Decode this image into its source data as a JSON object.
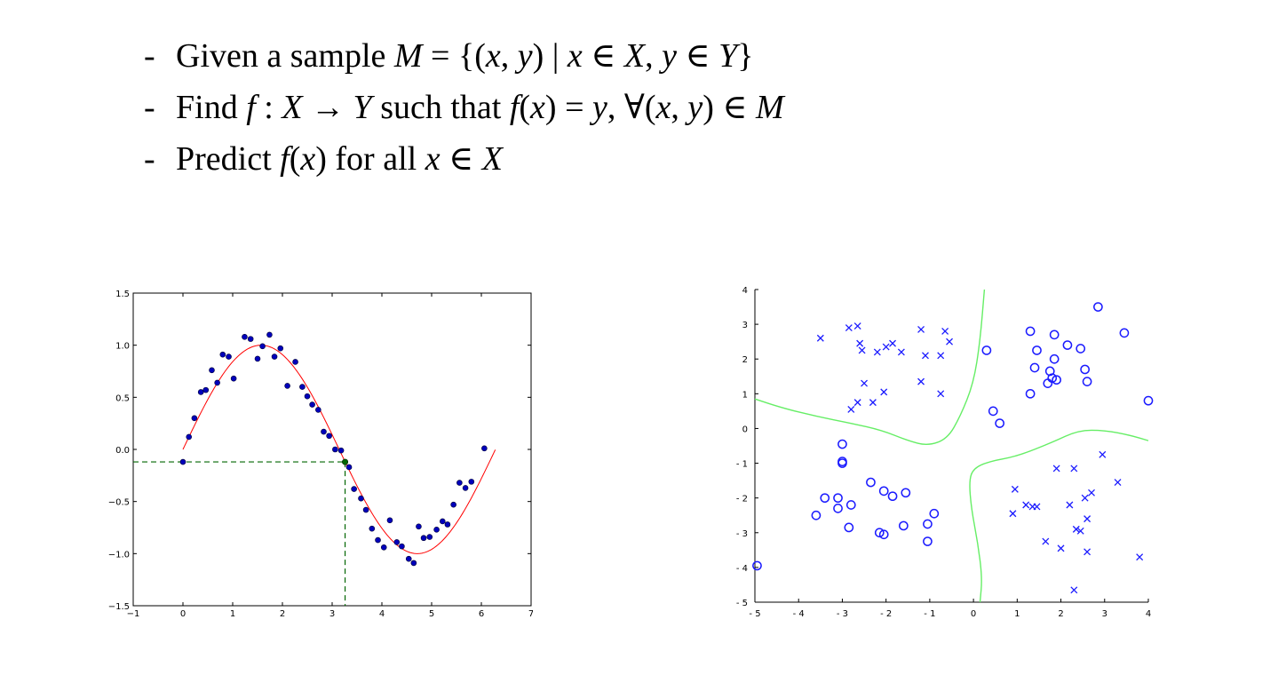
{
  "bullets": [
    {
      "dash": "-",
      "segments": [
        {
          "t": "Given a sample ",
          "m": false
        },
        {
          "t": "M",
          "m": true
        },
        {
          "t": " = {(",
          "m": false
        },
        {
          "t": "x",
          "m": true
        },
        {
          "t": ", ",
          "m": false
        },
        {
          "t": "y",
          "m": true
        },
        {
          "t": ") | ",
          "m": false
        },
        {
          "t": "x",
          "m": true
        },
        {
          "t": " ∈ ",
          "m": false
        },
        {
          "t": "X",
          "m": true
        },
        {
          "t": ", ",
          "m": false
        },
        {
          "t": "y",
          "m": true
        },
        {
          "t": " ∈ ",
          "m": false
        },
        {
          "t": "Y",
          "m": true
        },
        {
          "t": "}",
          "m": false
        }
      ]
    },
    {
      "dash": "-",
      "segments": [
        {
          "t": "Find ",
          "m": false
        },
        {
          "t": "f",
          "m": true
        },
        {
          "t": " : ",
          "m": false
        },
        {
          "t": "X",
          "m": true
        },
        {
          "t": " → ",
          "m": false
        },
        {
          "t": "Y",
          "m": true
        },
        {
          "t": " such that ",
          "m": false
        },
        {
          "t": "f",
          "m": true
        },
        {
          "t": "(",
          "m": false
        },
        {
          "t": "x",
          "m": true
        },
        {
          "t": ") = ",
          "m": false
        },
        {
          "t": "y",
          "m": true
        },
        {
          "t": ", ∀(",
          "m": false
        },
        {
          "t": "x",
          "m": true
        },
        {
          "t": ", ",
          "m": false
        },
        {
          "t": "y",
          "m": true
        },
        {
          "t": ") ∈ ",
          "m": false
        },
        {
          "t": "M",
          "m": true
        }
      ]
    },
    {
      "dash": "-",
      "segments": [
        {
          "t": "Predict ",
          "m": false
        },
        {
          "t": "f",
          "m": true
        },
        {
          "t": "(",
          "m": false
        },
        {
          "t": "x",
          "m": true
        },
        {
          "t": ") for all ",
          "m": false
        },
        {
          "t": "x",
          "m": true
        },
        {
          "t": " ∈ ",
          "m": false
        },
        {
          "t": "X",
          "m": true
        }
      ]
    }
  ],
  "chart_data": [
    {
      "type": "scatter",
      "title": "",
      "xlabel": "",
      "ylabel": "",
      "xlim": [
        -1,
        7
      ],
      "ylim": [
        -1.5,
        1.5
      ],
      "xticks": [
        "−1",
        "0",
        "1",
        "2",
        "3",
        "4",
        "5",
        "6",
        "7"
      ],
      "yticks": [
        "1.5",
        "1.0",
        "0.5",
        "0.0",
        "−0.5",
        "−1.0",
        "−1.5"
      ],
      "grid": false,
      "colors": {
        "points": "#0000bb",
        "curve": "#ff0000",
        "guide": "#006600",
        "highlight": "#006600"
      },
      "curve": {
        "function": "sin(x)",
        "x_range": [
          0,
          6.28
        ]
      },
      "points": [
        [
          0.0,
          -0.12
        ],
        [
          0.12,
          0.12
        ],
        [
          0.23,
          0.3
        ],
        [
          0.36,
          0.55
        ],
        [
          0.46,
          0.57
        ],
        [
          0.58,
          0.76
        ],
        [
          0.69,
          0.64
        ],
        [
          0.8,
          0.91
        ],
        [
          0.92,
          0.89
        ],
        [
          1.02,
          0.68
        ],
        [
          1.24,
          1.08
        ],
        [
          1.36,
          1.06
        ],
        [
          1.5,
          0.87
        ],
        [
          1.6,
          0.99
        ],
        [
          1.74,
          1.1
        ],
        [
          1.84,
          0.89
        ],
        [
          1.96,
          0.97
        ],
        [
          2.1,
          0.61
        ],
        [
          2.26,
          0.84
        ],
        [
          2.4,
          0.6
        ],
        [
          2.5,
          0.51
        ],
        [
          2.6,
          0.43
        ],
        [
          2.72,
          0.38
        ],
        [
          2.83,
          0.17
        ],
        [
          2.94,
          0.13
        ],
        [
          3.06,
          0.0
        ],
        [
          3.18,
          -0.01
        ],
        [
          3.34,
          -0.17
        ],
        [
          3.44,
          -0.38
        ],
        [
          3.58,
          -0.47
        ],
        [
          3.68,
          -0.58
        ],
        [
          3.8,
          -0.76
        ],
        [
          3.92,
          -0.87
        ],
        [
          4.04,
          -0.94
        ],
        [
          4.16,
          -0.68
        ],
        [
          4.3,
          -0.89
        ],
        [
          4.4,
          -0.93
        ],
        [
          4.54,
          -1.05
        ],
        [
          4.64,
          -1.09
        ],
        [
          4.74,
          -0.74
        ],
        [
          4.84,
          -0.85
        ],
        [
          4.96,
          -0.84
        ],
        [
          5.1,
          -0.77
        ],
        [
          5.22,
          -0.69
        ],
        [
          5.32,
          -0.72
        ],
        [
          5.44,
          -0.53
        ],
        [
          5.56,
          -0.32
        ],
        [
          5.68,
          -0.37
        ],
        [
          5.8,
          -0.31
        ],
        [
          6.06,
          0.01
        ]
      ],
      "highlight": [
        3.26,
        -0.12
      ]
    },
    {
      "type": "scatter",
      "title": "",
      "xlabel": "",
      "ylabel": "",
      "xlim": [
        -5,
        4
      ],
      "ylim": [
        -5,
        4
      ],
      "xticks": [
        "- 5",
        "- 4",
        "- 3",
        "- 2",
        "- 1",
        "0",
        "1",
        "2",
        "3",
        "4"
      ],
      "yticks": [
        "4",
        "3",
        "2",
        "1",
        "0",
        "- 1",
        "- 2",
        "- 3",
        "- 4",
        "- 5"
      ],
      "grid": false,
      "colors": {
        "markers": "#1a1aff",
        "boundary": "#66ee66"
      },
      "series": [
        {
          "marker": "x",
          "values": [
            [
              -3.5,
              2.6
            ],
            [
              -2.85,
              2.9
            ],
            [
              -2.65,
              2.95
            ],
            [
              -2.6,
              2.45
            ],
            [
              -2.55,
              2.25
            ],
            [
              -2.2,
              2.2
            ],
            [
              -2.0,
              2.35
            ],
            [
              -1.85,
              2.45
            ],
            [
              -1.65,
              2.2
            ],
            [
              -1.2,
              2.85
            ],
            [
              -1.1,
              2.1
            ],
            [
              -0.65,
              2.8
            ],
            [
              -0.55,
              2.5
            ],
            [
              -0.75,
              2.1
            ],
            [
              -2.5,
              1.3
            ],
            [
              -2.65,
              0.75
            ],
            [
              -2.8,
              0.55
            ],
            [
              -2.3,
              0.75
            ],
            [
              -2.05,
              1.05
            ],
            [
              -1.2,
              1.35
            ],
            [
              -0.75,
              1.0
            ],
            [
              2.95,
              -0.75
            ],
            [
              3.3,
              -1.55
            ],
            [
              1.9,
              -1.15
            ],
            [
              2.3,
              -1.15
            ],
            [
              0.95,
              -1.75
            ],
            [
              1.2,
              -2.2
            ],
            [
              1.35,
              -2.25
            ],
            [
              1.45,
              -2.25
            ],
            [
              2.2,
              -2.2
            ],
            [
              2.55,
              -2.0
            ],
            [
              2.7,
              -1.85
            ],
            [
              0.9,
              -2.45
            ],
            [
              2.6,
              -2.6
            ],
            [
              2.35,
              -2.9
            ],
            [
              2.45,
              -2.95
            ],
            [
              1.65,
              -3.25
            ],
            [
              2.0,
              -3.45
            ],
            [
              2.6,
              -3.55
            ],
            [
              3.8,
              -3.7
            ],
            [
              2.3,
              -4.65
            ]
          ]
        },
        {
          "marker": "o",
          "values": [
            [
              0.3,
              2.25
            ],
            [
              1.3,
              2.8
            ],
            [
              1.45,
              2.25
            ],
            [
              1.85,
              2.7
            ],
            [
              2.15,
              2.4
            ],
            [
              2.45,
              2.3
            ],
            [
              2.85,
              3.5
            ],
            [
              3.45,
              2.75
            ],
            [
              1.85,
              2.0
            ],
            [
              1.75,
              1.65
            ],
            [
              2.55,
              1.7
            ],
            [
              1.4,
              1.75
            ],
            [
              1.7,
              1.3
            ],
            [
              1.8,
              1.45
            ],
            [
              1.9,
              1.4
            ],
            [
              2.6,
              1.35
            ],
            [
              1.3,
              1.0
            ],
            [
              0.45,
              0.5
            ],
            [
              0.6,
              0.15
            ],
            [
              4.0,
              0.8
            ],
            [
              -3.0,
              -0.45
            ],
            [
              -3.0,
              -0.95
            ],
            [
              -3.0,
              -1.0
            ],
            [
              -3.4,
              -2.0
            ],
            [
              -3.1,
              -2.0
            ],
            [
              -3.1,
              -2.3
            ],
            [
              -3.6,
              -2.5
            ],
            [
              -2.8,
              -2.2
            ],
            [
              -2.35,
              -1.55
            ],
            [
              -2.05,
              -1.8
            ],
            [
              -1.85,
              -1.95
            ],
            [
              -1.55,
              -1.85
            ],
            [
              -2.85,
              -2.85
            ],
            [
              -2.15,
              -3.0
            ],
            [
              -2.05,
              -3.05
            ],
            [
              -1.6,
              -2.8
            ],
            [
              -1.05,
              -2.75
            ],
            [
              -0.9,
              -2.45
            ],
            [
              -1.05,
              -3.25
            ],
            [
              -4.95,
              -3.95
            ]
          ]
        }
      ],
      "boundaries": [
        [
          [
            -5,
            0.85
          ],
          [
            -4.4,
            0.6
          ],
          [
            -3.6,
            0.35
          ],
          [
            -2.8,
            0.15
          ],
          [
            -2.1,
            -0.05
          ],
          [
            -1.5,
            -0.35
          ],
          [
            -1.05,
            -0.5
          ],
          [
            -0.6,
            -0.3
          ],
          [
            -0.3,
            0.35
          ],
          [
            0.0,
            1.3
          ],
          [
            0.15,
            2.5
          ],
          [
            0.25,
            4.0
          ]
        ],
        [
          [
            0.15,
            -5.0
          ],
          [
            0.2,
            -4.3
          ],
          [
            0.1,
            -3.3
          ],
          [
            -0.05,
            -2.3
          ],
          [
            -0.1,
            -1.5
          ],
          [
            0.0,
            -1.15
          ],
          [
            0.35,
            -0.95
          ],
          [
            1.0,
            -0.8
          ],
          [
            1.8,
            -0.4
          ],
          [
            2.4,
            -0.05
          ],
          [
            3.0,
            -0.05
          ],
          [
            3.6,
            -0.2
          ],
          [
            4.0,
            -0.35
          ]
        ]
      ]
    }
  ]
}
